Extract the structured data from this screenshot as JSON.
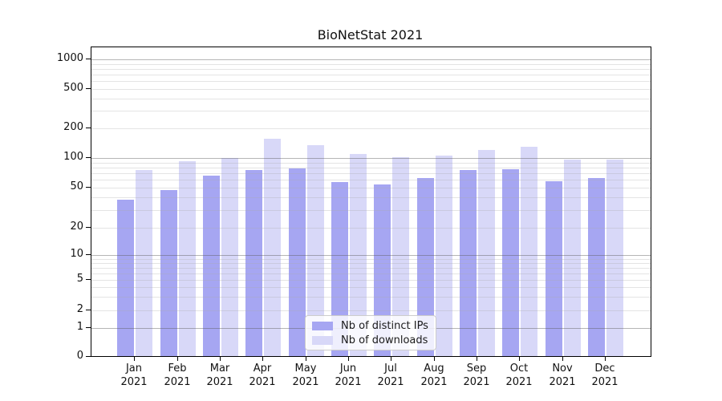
{
  "chart_data": {
    "type": "bar",
    "title": "BioNetStat 2021",
    "categories": [
      "Jan",
      "Feb",
      "Mar",
      "Apr",
      "May",
      "Jun",
      "Jul",
      "Aug",
      "Sep",
      "Oct",
      "Nov",
      "Dec"
    ],
    "category_sub_label": "2021",
    "series": [
      {
        "name": "Nb of distinct IPs",
        "color": "#a6a6f2",
        "values": [
          38,
          47,
          66,
          76,
          79,
          57,
          54,
          63,
          75,
          77,
          58,
          63
        ]
      },
      {
        "name": "Nb of downloads",
        "color": "#d8d8f8",
        "values": [
          75,
          92,
          100,
          158,
          135,
          109,
          101,
          105,
          120,
          131,
          96,
          97
        ]
      }
    ],
    "xlabel": "",
    "ylabel": "",
    "yticks": [
      0,
      1,
      2,
      5,
      10,
      20,
      50,
      100,
      200,
      500,
      1000
    ],
    "ylim": [
      0,
      1260
    ],
    "yscale": "log-like with linear-compressed region near zero",
    "grid": "horizontal, major gray lines at 1/10/100/1000 plus light minor log lines",
    "legend_position": "lower center inside plot"
  },
  "colors": {
    "bar_distinct_ips": "#a6a6f2",
    "bar_downloads": "#d8d8f8",
    "grid_major": "#9f9f9f",
    "grid_minor": "#e2e2e2",
    "axis": "#000000",
    "background": "#ffffff"
  }
}
